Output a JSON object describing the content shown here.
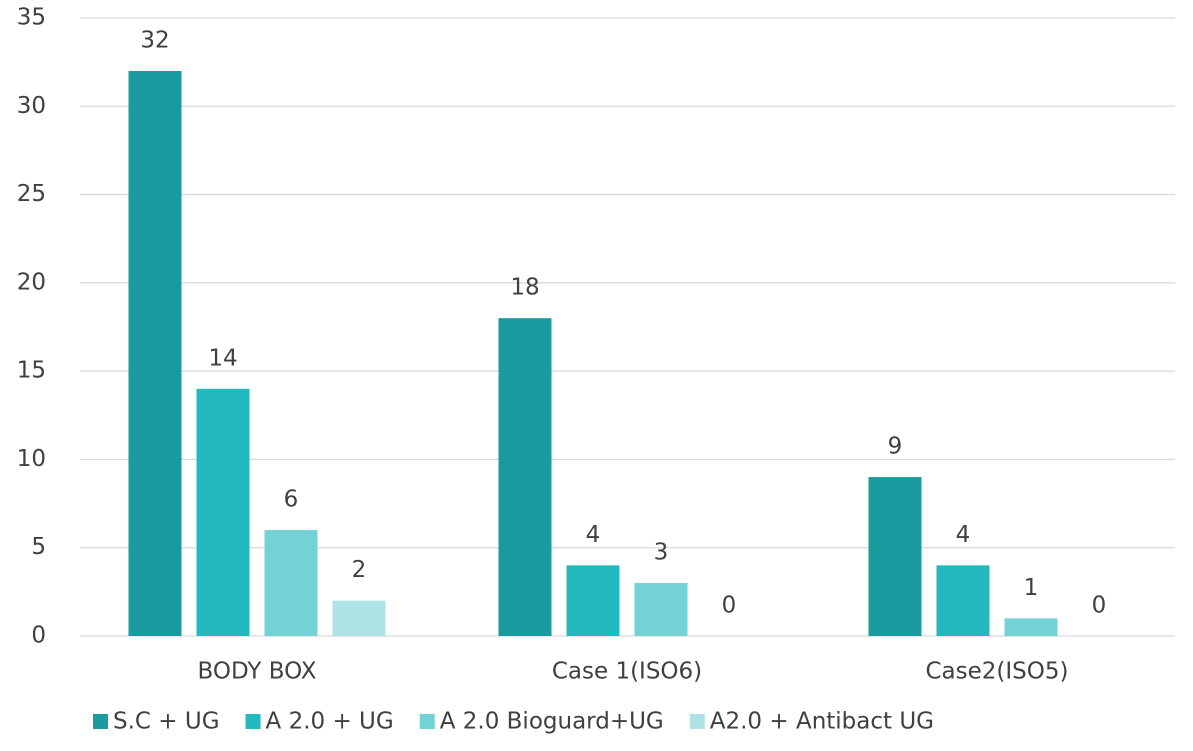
{
  "chart_data": {
    "type": "bar",
    "categories": [
      "BODY BOX",
      "Case 1(ISO6)",
      "Case2(ISO5)"
    ],
    "series": [
      {
        "name": "S.C + UG",
        "color": "#1a9ba0",
        "values": [
          32,
          18,
          9
        ]
      },
      {
        "name": "A 2.0 + UG",
        "color": "#22babf",
        "values": [
          14,
          4,
          4
        ]
      },
      {
        "name": "A 2.0 Bioguard+UG",
        "color": "#72d2d6",
        "values": [
          6,
          3,
          1
        ]
      },
      {
        "name": "A2.0 + Antibact UG",
        "color": "#ade3e5",
        "values": [
          2,
          0,
          0
        ]
      }
    ],
    "ylim": [
      0,
      35
    ],
    "yticks": [
      0,
      5,
      10,
      15,
      20,
      25,
      30,
      35
    ],
    "grid": true,
    "legend": "bottom"
  }
}
